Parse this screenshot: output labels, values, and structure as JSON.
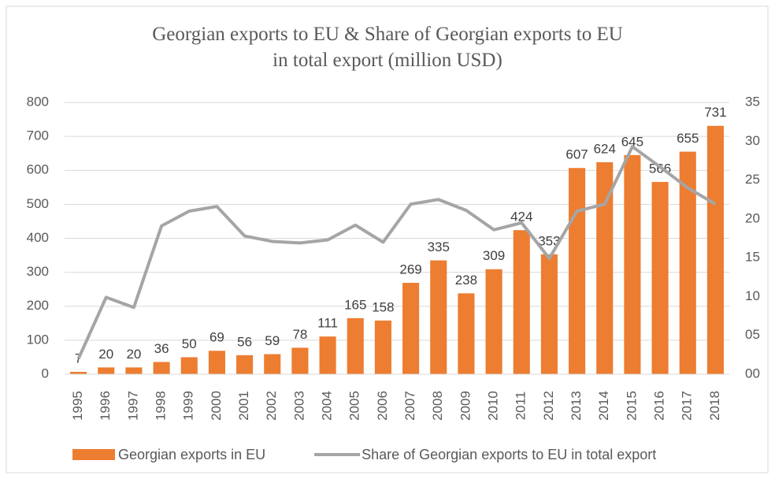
{
  "chart_data": {
    "type": "bar_line",
    "title": "Georgian exports to EU & Share of Georgian exports to EU in total export (million USD)",
    "categories": [
      "1995",
      "1996",
      "1997",
      "1998",
      "1999",
      "2000",
      "2001",
      "2002",
      "2003",
      "2004",
      "2005",
      "2006",
      "2007",
      "2008",
      "2009",
      "2010",
      "2011",
      "2012",
      "2013",
      "2014",
      "2015",
      "2016",
      "2017",
      "2018"
    ],
    "series": [
      {
        "name": "Georgian exports in EU",
        "color": "#ed7d31",
        "kind": "bar",
        "axis": "y",
        "values": [
          7,
          20,
          20,
          36,
          50,
          69,
          56,
          59,
          78,
          111,
          165,
          158,
          269,
          335,
          238,
          309,
          424,
          353,
          607,
          624,
          645,
          566,
          655,
          731
        ]
      },
      {
        "name": "Share of Georgian exports to EU in total export",
        "color": "#a5a5a5",
        "kind": "line",
        "axis": "y2",
        "values": [
          2.0,
          9.9,
          8.6,
          19.1,
          21.0,
          21.6,
          17.8,
          17.1,
          16.9,
          17.3,
          19.2,
          17.0,
          21.9,
          22.5,
          21.1,
          18.6,
          19.5,
          14.9,
          21.0,
          21.9,
          29.3,
          26.7,
          24.0,
          21.9
        ]
      }
    ],
    "ylim": [
      0,
      800
    ],
    "yticks": [
      0,
      100,
      200,
      300,
      400,
      500,
      600,
      700,
      800
    ],
    "y2lim": [
      0,
      35
    ],
    "y2ticks": [
      {
        "value": 0,
        "label": "00"
      },
      {
        "value": 5,
        "label": "05"
      },
      10,
      15,
      20,
      25,
      30,
      35
    ],
    "grid": true,
    "legend": "bottom"
  }
}
